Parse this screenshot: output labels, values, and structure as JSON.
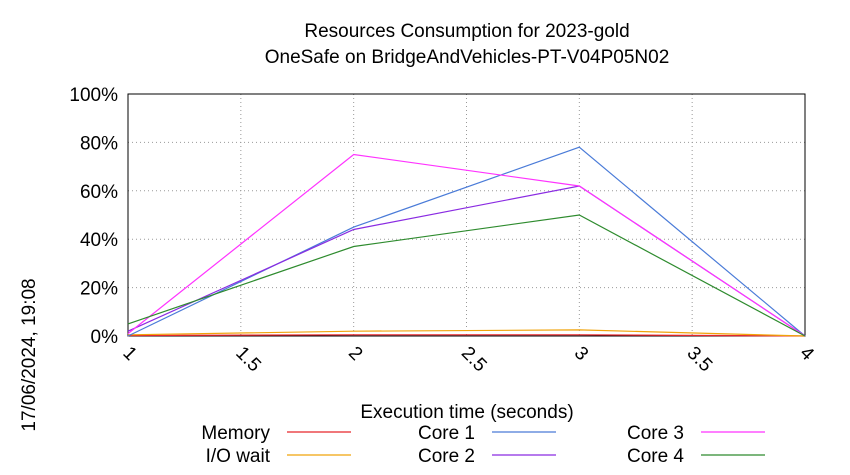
{
  "chart_data": {
    "type": "line",
    "title": "Resources Consumption for 2023-gold",
    "subtitle": "OneSafe on BridgeAndVehicles-PT-V04P05N02",
    "xlabel": "Execution time (seconds)",
    "ylabel": "",
    "xlim": [
      1,
      4
    ],
    "ylim": [
      0,
      100
    ],
    "x_ticks": [
      "1",
      "1.5",
      "2",
      "2.5",
      "3",
      "3.5",
      "4"
    ],
    "y_ticks": [
      "0%",
      "20%",
      "40%",
      "60%",
      "80%",
      "100%"
    ],
    "grid": true,
    "legend_position": "bottom",
    "side_label": "17/06/2024, 19:08",
    "series": [
      {
        "name": "Memory",
        "color": "#e8262b",
        "x": [
          1,
          2,
          3,
          4
        ],
        "values": [
          0.2,
          0.5,
          0.5,
          0
        ]
      },
      {
        "name": "I/O wait",
        "color": "#f0a30a",
        "x": [
          1,
          2,
          3,
          4
        ],
        "values": [
          0.5,
          2,
          2.5,
          0
        ]
      },
      {
        "name": "Core 1",
        "color": "#4a7bd8",
        "x": [
          1,
          2,
          3,
          4
        ],
        "values": [
          0,
          45,
          78,
          0
        ]
      },
      {
        "name": "Core 2",
        "color": "#8a2be2",
        "x": [
          1,
          2,
          3,
          4
        ],
        "values": [
          2,
          44,
          62,
          0
        ]
      },
      {
        "name": "Core 3",
        "color": "#ff33ff",
        "x": [
          1,
          2,
          3,
          4
        ],
        "values": [
          1,
          75,
          62,
          0
        ]
      },
      {
        "name": "Core 4",
        "color": "#2e8b2e",
        "x": [
          1,
          2,
          3,
          4
        ],
        "values": [
          5,
          37,
          50,
          0
        ]
      }
    ]
  }
}
